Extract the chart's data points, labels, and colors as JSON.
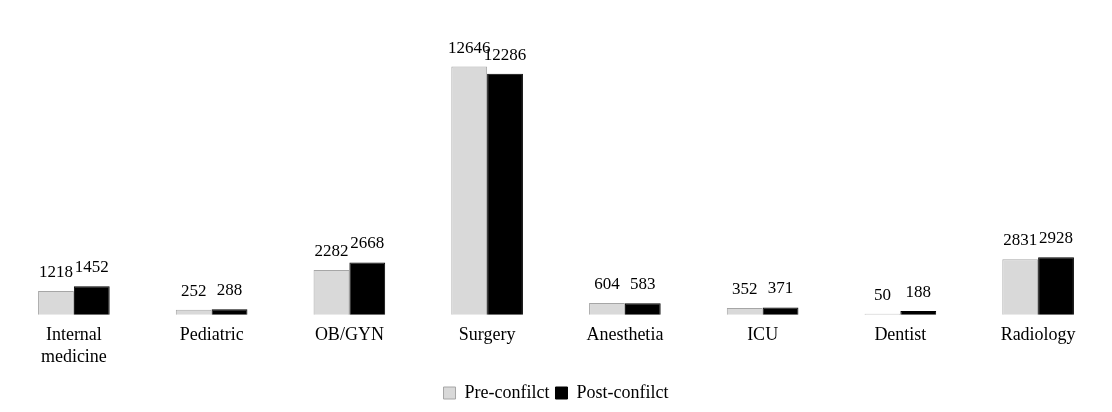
{
  "chart_data": {
    "type": "bar",
    "categories": [
      "Internal medicine",
      "Pediatric",
      "OB/GYN",
      "Surgery",
      "Anesthetia",
      "ICU",
      "Dentist",
      "Radiology"
    ],
    "series": [
      {
        "name": "Pre-confilct",
        "color": "#d9d9d9",
        "values": [
          1218,
          252,
          2282,
          12646,
          604,
          352,
          50,
          2831
        ]
      },
      {
        "name": "Post-confilct",
        "color": "#000000",
        "values": [
          1452,
          288,
          2668,
          12286,
          583,
          371,
          188,
          2928
        ]
      }
    ],
    "data_labels": true,
    "legend": "bottom",
    "grid": false
  }
}
